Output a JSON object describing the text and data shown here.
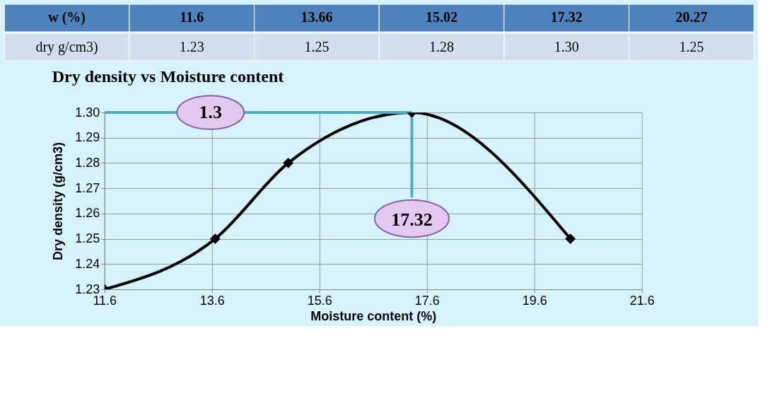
{
  "chart_data": [
    {
      "type": "other",
      "annotations": [
        "w  (%)",
        "dry        g/cm3)",
        "11.6",
        "13.66",
        "15.02",
        "17.32",
        "20.27",
        "1.23",
        "1.25",
        "1.28",
        "1.30",
        "1.25"
      ]
    },
    {
      "type": "line",
      "title": "Dry density vs Moisture content",
      "xlabel": "Moisture content (%)",
      "ylabel": "Dry density (g/cm3)",
      "x": [
        11.6,
        13.66,
        15.02,
        17.32,
        20.27
      ],
      "series": [
        {
          "color": "#000000",
          "values": [
            1.23,
            1.25,
            1.28,
            1.3,
            1.25
          ]
        }
      ],
      "xlim": [
        11.6,
        21.6
      ],
      "xticks": [
        11.6,
        13.6,
        15.6,
        17.6,
        19.6,
        21.6
      ],
      "ylim": [
        1.23,
        1.3
      ],
      "yticks": [
        {
          "value": 1.23,
          "label": "1.23"
        },
        {
          "value": 1.24,
          "label": "1.24"
        },
        {
          "value": 1.25,
          "label": "1.25"
        },
        {
          "value": 1.26,
          "label": "1.26"
        },
        {
          "value": 1.27,
          "label": "1.27"
        },
        {
          "value": 1.28,
          "label": "1.28"
        },
        {
          "value": 1.29,
          "label": "1.29"
        },
        {
          "value": 1.3,
          "label": "1.30"
        }
      ],
      "grid": true,
      "marker": "diamond",
      "line_style": "solid",
      "ref_lines": [
        {
          "axis": "y",
          "value": 1.3,
          "label": "1.3",
          "color": "#4bacc6",
          "line_style": "solid"
        },
        {
          "axis": "x",
          "value": 17.32,
          "label": "17.32",
          "color": "#4bacc6",
          "line_style": "solid"
        }
      ]
    }
  ]
}
